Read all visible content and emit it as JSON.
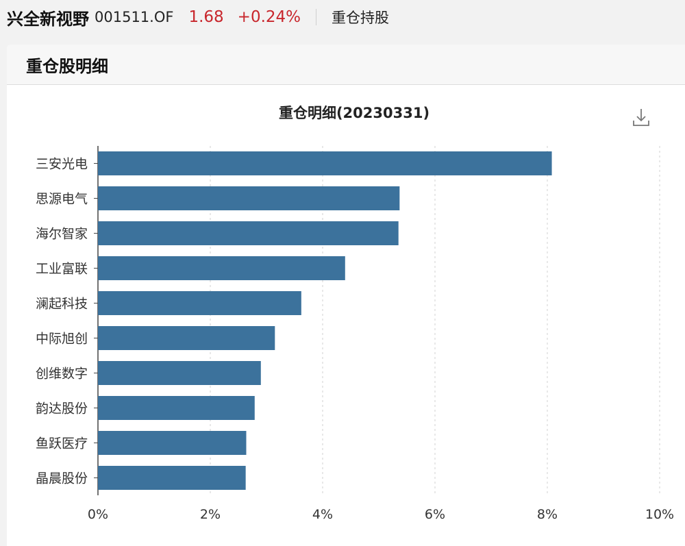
{
  "header": {
    "fund_name": "兴全新视野",
    "fund_code": "001511.OF",
    "price": "1.68",
    "change": "+0.24%",
    "section_tab": "重仓持股"
  },
  "panel": {
    "title": "重仓股明细",
    "download_icon": "download-icon"
  },
  "colors": {
    "bar": "#3c729c",
    "price_up": "#c8262c",
    "grid": "#d0d0d0"
  },
  "chart_data": {
    "type": "bar",
    "orientation": "horizontal",
    "title": "重仓明细(20230331)",
    "categories": [
      "三安光电",
      "思源电气",
      "海尔智家",
      "工业富联",
      "澜起科技",
      "中际旭创",
      "创维数字",
      "韵达股份",
      "鱼跃医疗",
      "晶晨股份"
    ],
    "values": [
      8.08,
      5.37,
      5.35,
      4.4,
      3.62,
      3.15,
      2.9,
      2.79,
      2.64,
      2.63
    ],
    "xlim": [
      0,
      10
    ],
    "xticks": [
      "0%",
      "2%",
      "4%",
      "6%",
      "8%",
      "10%"
    ],
    "grid": "vertical dashed",
    "legend": "none"
  }
}
